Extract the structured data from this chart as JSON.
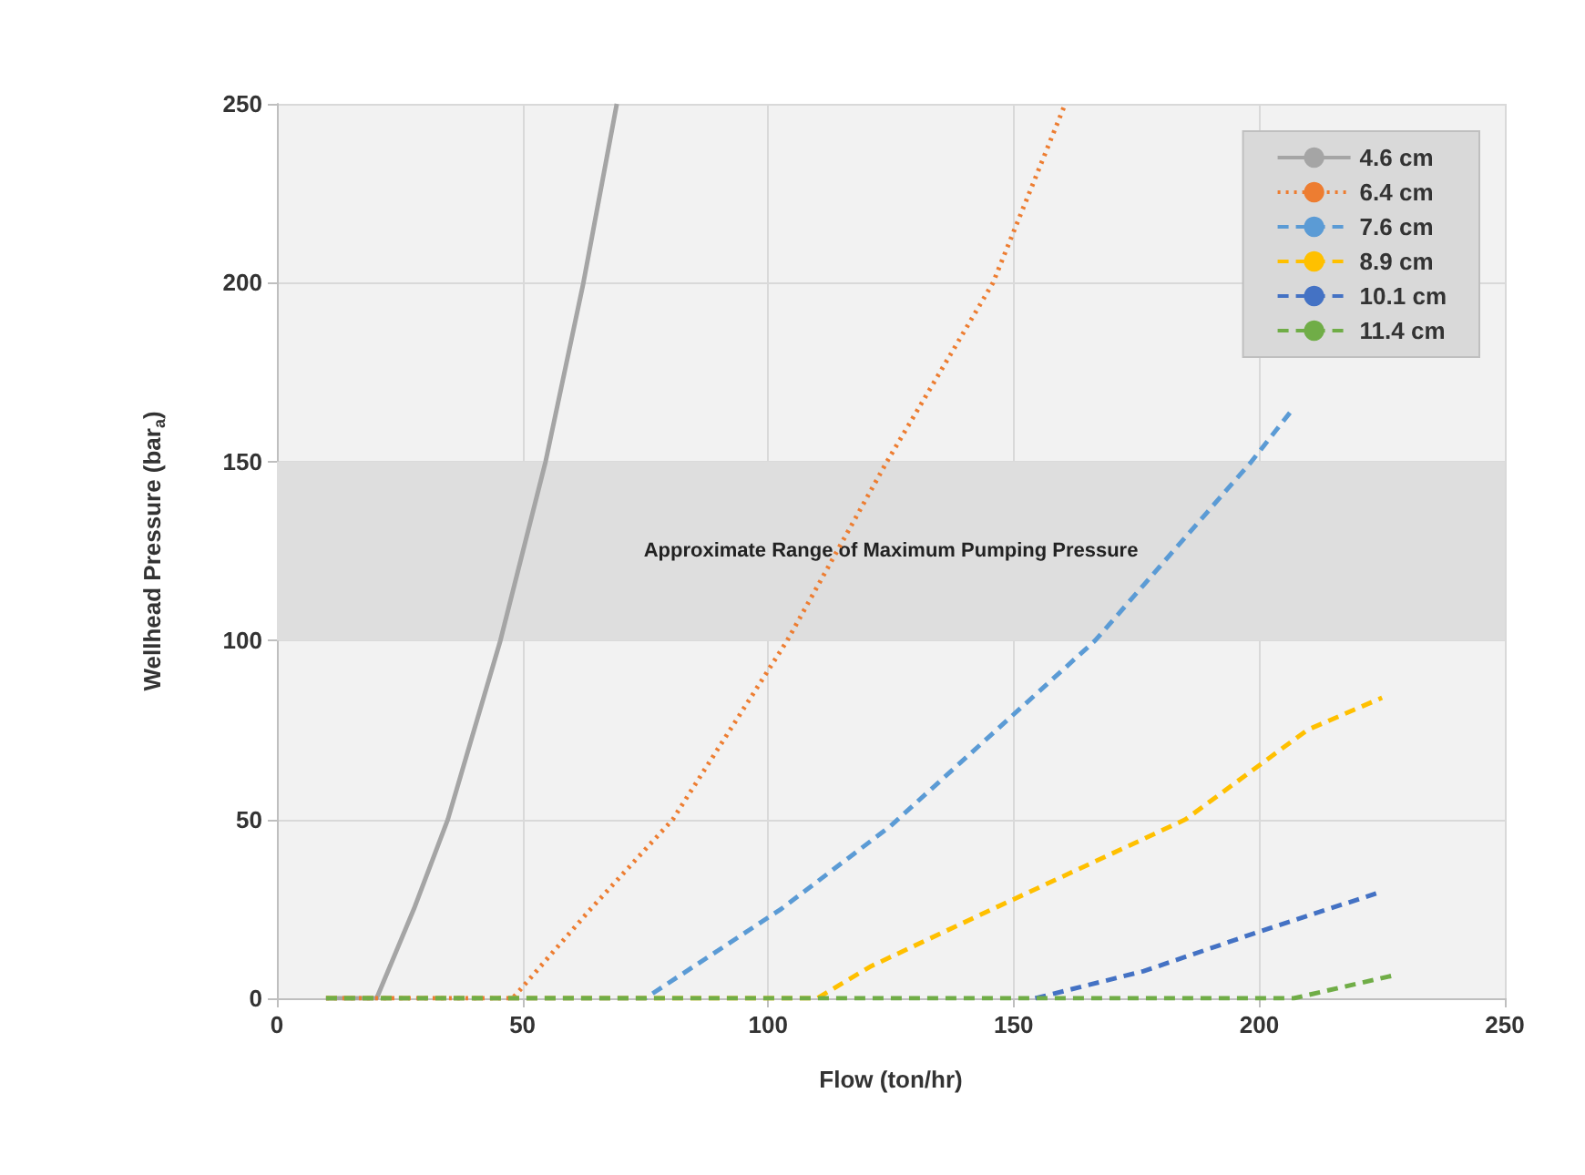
{
  "chart_data": {
    "type": "line",
    "xlabel": "Flow (ton/hr)",
    "ylabel": "Wellhead Pressure (bar$_{a}$)",
    "xlim": [
      0,
      250
    ],
    "xticks": [
      0,
      50,
      100,
      150,
      200,
      250
    ],
    "ylim": [
      0,
      250
    ],
    "yticks": [
      0,
      50,
      100,
      150,
      200,
      250
    ],
    "grid": true,
    "legend": "top right",
    "marker": "none",
    "bands": [
      {
        "axis": "y",
        "from": 100,
        "to": 150,
        "label": "Approximate Range of Maximum Pumping Pressure",
        "color": "#dedede"
      }
    ],
    "series": [
      {
        "name": "4.6 cm",
        "color": "#a5a5a5",
        "line_style": "solid",
        "x": [
          10,
          20.3,
          27.9,
          34.8,
          45.5,
          54.7,
          62.4,
          69.2
        ],
        "values": [
          0,
          0,
          25,
          50,
          100,
          150,
          200,
          250
        ]
      },
      {
        "name": "6.4 cm",
        "color": "#ed7d31",
        "line_style": "dotted",
        "x": [
          10,
          48,
          63.9,
          80.6,
          103.9,
          124.2,
          145.8,
          160.5
        ],
        "values": [
          0,
          0,
          25,
          50,
          100,
          150,
          200,
          250
        ]
      },
      {
        "name": "7.6 cm",
        "color": "#5b9bd5",
        "line_style": "dashed",
        "x": [
          10,
          75,
          102.7,
          124.8,
          166.6,
          198.4,
          207
        ],
        "values": [
          0,
          0,
          25,
          48,
          100,
          150,
          165
        ]
      },
      {
        "name": "8.9 cm",
        "color": "#ffc000",
        "line_style": "dashed",
        "x": [
          10,
          110,
          121,
          145.8,
          185,
          209.8,
          225
        ],
        "values": [
          0,
          0,
          9,
          25,
          50,
          75,
          84
        ]
      },
      {
        "name": "10.1 cm",
        "color": "#4472c4",
        "line_style": "dashed",
        "x": [
          154.4,
          176.5,
          199.9,
          223.8
        ],
        "values": [
          0,
          7.6,
          18.6,
          29.3
        ]
      },
      {
        "name": "11.4 cm",
        "color": "#70ad47",
        "line_style": "dashed",
        "x": [
          10,
          207,
          227
        ],
        "values": [
          0,
          0,
          6.3
        ]
      }
    ]
  }
}
